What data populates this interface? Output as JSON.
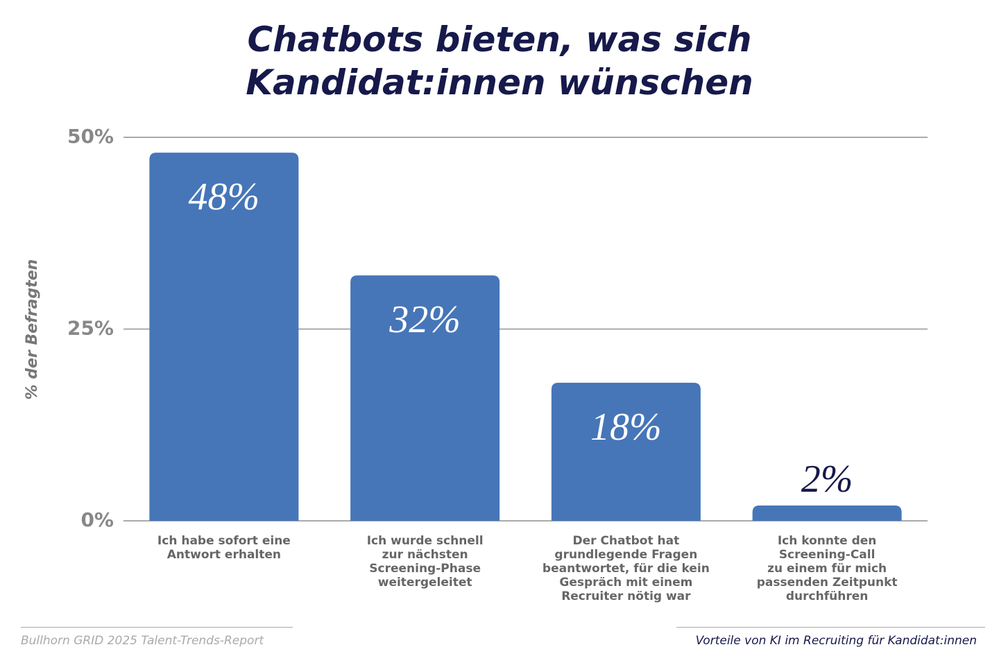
{
  "chart_data": {
    "type": "bar",
    "title": "Chatbots bieten, was sich\nKandidat:innen wünschen",
    "y_label": "% der Befragten",
    "categories": [
      "Ich habe sofort eine\nAntwort erhalten",
      "Ich wurde schnell\nzur nächsten\nScreening-Phase\nweitergeleitet",
      "Der Chatbot hat\ngrundlegende Fragen\nbeantwortet, für die kein\nGespräch mit einem\nRecruiter nötig war",
      "Ich konnte den\nScreening-Call\nzu einem für mich\npassenden Zeitpunkt\ndurchführen"
    ],
    "values": [
      48,
      32,
      18,
      2
    ],
    "value_labels": [
      "48%",
      "32%",
      "18%",
      "2%"
    ],
    "color": "#4676b8",
    "ylim": [
      0,
      50
    ],
    "yticks": [
      {
        "value": 0,
        "label": "0%"
      },
      {
        "value": 25,
        "label": "25%"
      },
      {
        "value": 50,
        "label": "50%"
      }
    ],
    "grid": true,
    "source": "Bullhorn GRID 2025 Talent-Trends-Report",
    "caption": "Vorteile von KI im Recruiting für Kandidat:innen"
  }
}
